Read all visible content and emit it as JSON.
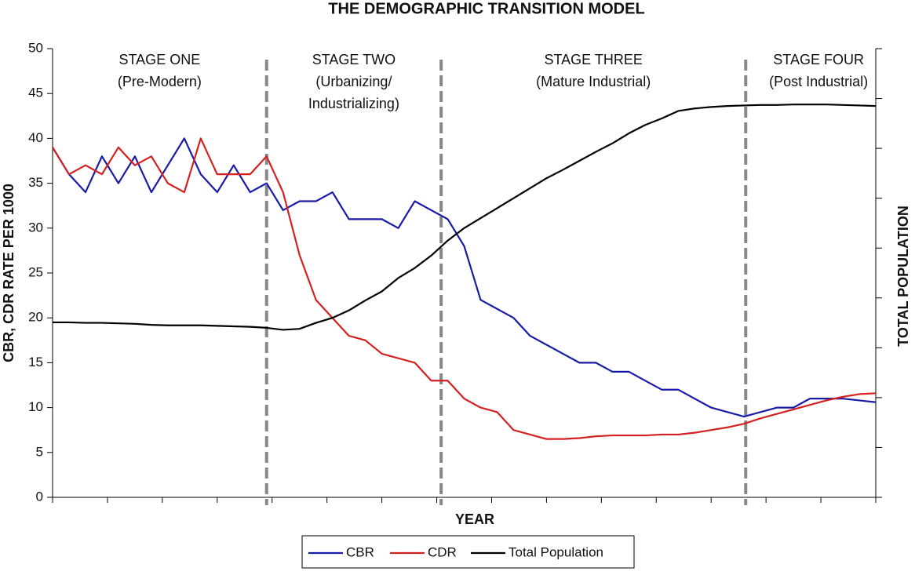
{
  "chart_data": {
    "type": "line",
    "title": "THE DEMOGRAPHIC TRANSITION MODEL",
    "x_label": "YEAR",
    "y_label": "CBR, CDR RATE PER 1000",
    "y2_label": "TOTAL POPULATION",
    "xlim": [
      0,
      150
    ],
    "xticks": [
      0,
      10,
      20,
      30,
      40,
      50,
      60,
      70,
      80,
      90,
      100,
      110,
      120,
      130,
      140,
      150
    ],
    "ylim": [
      0,
      50
    ],
    "yticks": [
      0,
      5,
      10,
      15,
      20,
      25,
      30,
      35,
      40,
      45,
      50
    ],
    "y2lim": [
      0,
      9
    ],
    "y2ticks": [
      0,
      1,
      2,
      3,
      4,
      5,
      6,
      7,
      8,
      9
    ],
    "x": [
      0,
      3,
      6,
      9,
      12,
      15,
      18,
      21,
      24,
      27,
      30,
      33,
      36,
      39,
      42,
      45,
      48,
      51,
      54,
      57,
      60,
      63,
      66,
      69,
      72,
      75,
      78,
      81,
      84,
      87,
      90,
      93,
      96,
      99,
      102,
      105,
      108,
      111,
      114,
      117,
      120,
      123,
      126,
      129,
      132,
      135,
      138,
      141,
      144,
      147,
      150
    ],
    "series": [
      {
        "name": "CBR",
        "color": "#1a1aa8",
        "values": [
          39,
          36,
          34,
          38,
          35,
          38,
          34,
          37,
          40,
          36,
          34,
          37,
          34,
          35,
          32,
          33,
          33,
          34,
          31,
          31,
          31,
          30,
          33,
          32,
          31,
          28,
          22,
          21,
          20,
          18,
          17,
          16,
          15,
          15,
          14,
          14,
          13,
          12,
          12,
          11,
          10,
          9.5,
          9,
          9.5,
          10,
          10,
          11,
          11,
          11,
          10.8,
          10.6
        ]
      },
      {
        "name": "CDR",
        "color": "#d42020",
        "values": [
          39,
          36,
          37,
          36,
          39,
          37,
          38,
          35,
          34,
          40,
          36,
          36,
          36,
          38,
          34,
          27,
          22,
          20,
          18,
          17.5,
          16,
          15.5,
          15,
          13,
          13,
          11,
          10,
          9.5,
          7.5,
          7,
          6.5,
          6.5,
          6.6,
          6.8,
          6.9,
          6.9,
          6.9,
          7,
          7,
          7.2,
          7.5,
          7.8,
          8.2,
          8.8,
          9.3,
          9.8,
          10.3,
          10.8,
          11.2,
          11.5,
          11.6
        ]
      },
      {
        "name": "Total Population",
        "color": "#000000",
        "axis": "y2",
        "values": [
          3.51,
          3.51,
          3.5,
          3.5,
          3.49,
          3.48,
          3.46,
          3.45,
          3.45,
          3.45,
          3.44,
          3.43,
          3.42,
          3.4,
          3.36,
          3.38,
          3.5,
          3.6,
          3.75,
          3.95,
          4.13,
          4.4,
          4.6,
          4.85,
          5.15,
          5.4,
          5.6,
          5.8,
          6.0,
          6.2,
          6.4,
          6.57,
          6.75,
          6.93,
          7.1,
          7.3,
          7.47,
          7.6,
          7.75,
          7.8,
          7.83,
          7.85,
          7.86,
          7.87,
          7.87,
          7.88,
          7.88,
          7.88,
          7.87,
          7.86,
          7.85
        ]
      }
    ],
    "stage_boundaries": [
      39,
      70.8,
      126.3
    ],
    "stages": [
      {
        "label": "STAGE ONE",
        "sublabel": [
          "(Pre-Modern)"
        ]
      },
      {
        "label": "STAGE TWO",
        "sublabel": [
          "(Urbanizing/",
          "Industrializing)"
        ]
      },
      {
        "label": "STAGE THREE",
        "sublabel": [
          "(Mature Industrial)"
        ]
      },
      {
        "label": "STAGE FOUR",
        "sublabel": [
          "(Post Industrial)"
        ]
      }
    ]
  }
}
